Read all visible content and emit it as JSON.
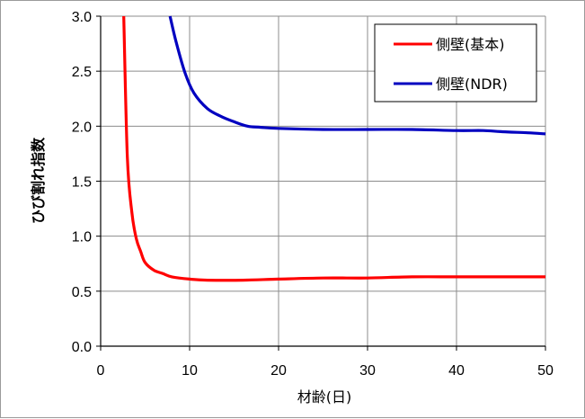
{
  "chart_data": {
    "type": "line",
    "xlabel": "材齢(日)",
    "ylabel": "ひび割れ指数",
    "xlim": [
      0,
      50
    ],
    "ylim": [
      0,
      3.0
    ],
    "x_ticks": [
      "0",
      "10",
      "20",
      "30",
      "40",
      "50"
    ],
    "y_ticks": [
      "0.0",
      "0.5",
      "1.0",
      "1.5",
      "2.0",
      "2.5",
      "3.0"
    ],
    "grid": true,
    "legend_position": "top-right",
    "series": [
      {
        "name": "側壁(基本)",
        "color": "#ff0000",
        "x": [
          2.6,
          3.0,
          3.5,
          4.0,
          4.5,
          5.0,
          6.0,
          7.0,
          8.0,
          10.0,
          12.0,
          16.0,
          20.0,
          25.0,
          30.0,
          35.0,
          40.0,
          45.0,
          50.0
        ],
        "y": [
          3.0,
          1.72,
          1.22,
          0.98,
          0.86,
          0.76,
          0.69,
          0.66,
          0.63,
          0.61,
          0.6,
          0.6,
          0.61,
          0.62,
          0.62,
          0.63,
          0.63,
          0.63,
          0.63
        ]
      },
      {
        "name": "側壁(NDR)",
        "color": "#0000c0",
        "x": [
          7.8,
          8.5,
          9.5,
          10.5,
          12.0,
          13.5,
          15.0,
          16.5,
          18.0,
          20.0,
          25.0,
          30.0,
          35.0,
          40.0,
          43.0,
          45.0,
          48.0,
          50.0
        ],
        "y": [
          3.0,
          2.76,
          2.48,
          2.3,
          2.16,
          2.09,
          2.04,
          2.0,
          1.99,
          1.98,
          1.97,
          1.97,
          1.97,
          1.96,
          1.96,
          1.95,
          1.94,
          1.93
        ]
      }
    ]
  }
}
